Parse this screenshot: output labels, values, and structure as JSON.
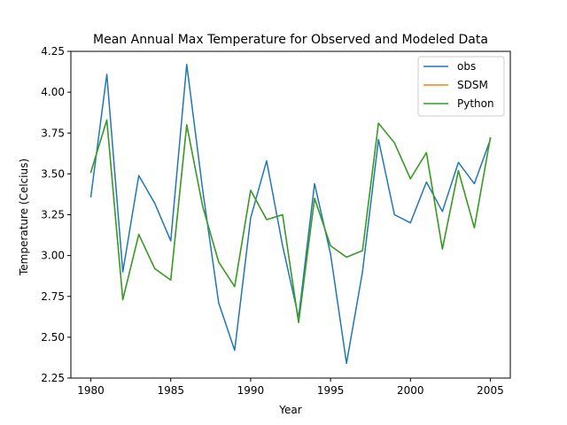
{
  "chart_data": {
    "type": "line",
    "title": "Mean Annual Max Temperature for Observed and Modeled Data",
    "xlabel": "Year",
    "ylabel": "Temperature (Celcius)",
    "xlim": [
      1978.75,
      2006.25
    ],
    "ylim": [
      2.25,
      4.25
    ],
    "xticks": [
      1980,
      1985,
      1990,
      1995,
      2000,
      2005
    ],
    "yticks": [
      2.25,
      2.5,
      2.75,
      3.0,
      3.25,
      3.5,
      3.75,
      4.0,
      4.25
    ],
    "ytick_labels": [
      "2.25",
      "2.50",
      "2.75",
      "3.00",
      "3.25",
      "3.50",
      "3.75",
      "4.00",
      "4.25"
    ],
    "grid": false,
    "legend": "top-right",
    "x": [
      1980,
      1981,
      1982,
      1983,
      1984,
      1985,
      1986,
      1987,
      1988,
      1989,
      1990,
      1991,
      1992,
      1993,
      1994,
      1995,
      1996,
      1997,
      1998,
      1999,
      2000,
      2001,
      2002,
      2003,
      2004,
      2005
    ],
    "series": [
      {
        "name": "obs",
        "color": "#1f77b4",
        "values": [
          3.36,
          4.11,
          2.9,
          3.49,
          3.32,
          3.09,
          4.17,
          3.4,
          2.71,
          2.42,
          3.23,
          3.58,
          3.06,
          2.62,
          3.44,
          3.01,
          2.34,
          2.9,
          3.71,
          3.25,
          3.2,
          3.45,
          3.27,
          3.57,
          3.44,
          3.71
        ]
      },
      {
        "name": "SDSM",
        "color": "#ff7f0e",
        "values": [
          3.51,
          3.83,
          2.73,
          3.13,
          2.92,
          2.85,
          3.8,
          3.3,
          2.96,
          2.81,
          3.4,
          3.22,
          3.25,
          2.59,
          3.35,
          3.06,
          2.99,
          3.03,
          3.81,
          3.69,
          3.47,
          3.63,
          3.04,
          3.52,
          3.17,
          3.72
        ]
      },
      {
        "name": "Python",
        "color": "#2ca02c",
        "values": [
          3.51,
          3.83,
          2.73,
          3.13,
          2.92,
          2.85,
          3.8,
          3.3,
          2.96,
          2.81,
          3.4,
          3.22,
          3.25,
          2.59,
          3.35,
          3.06,
          2.99,
          3.03,
          3.81,
          3.69,
          3.47,
          3.63,
          3.04,
          3.52,
          3.17,
          3.72
        ]
      }
    ]
  }
}
